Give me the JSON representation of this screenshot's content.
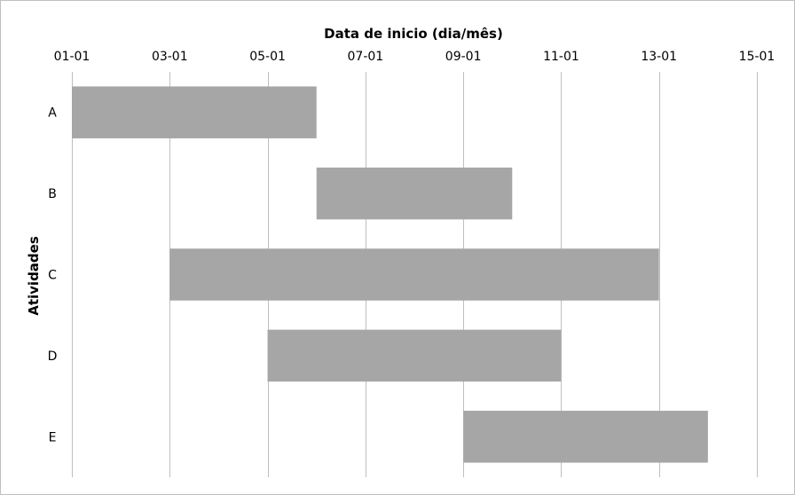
{
  "chart_data": {
    "type": "bar",
    "orientation": "horizontal",
    "subtype": "gantt",
    "x_title": "Data de inicio (dia/mês)",
    "y_title": "Atividades",
    "x_axis_position": "top",
    "x_ticks": [
      "01-01",
      "03-01",
      "05-01",
      "07-01",
      "09-01",
      "11-01",
      "13-01",
      "15-01"
    ],
    "x_range": [
      "01-01",
      "15-01"
    ],
    "categories": [
      "A",
      "B",
      "C",
      "D",
      "E"
    ],
    "tasks": [
      {
        "label": "A",
        "start": "01-01",
        "end": "06-01"
      },
      {
        "label": "B",
        "start": "06-01",
        "end": "10-01"
      },
      {
        "label": "C",
        "start": "03-01",
        "end": "13-01"
      },
      {
        "label": "D",
        "start": "05-01",
        "end": "11-01"
      },
      {
        "label": "E",
        "start": "09-01",
        "end": "14-01"
      }
    ],
    "grid": "vertical",
    "legend": "none",
    "bar_color": "#a6a6a6",
    "grid_color": "#bfbfbf"
  }
}
